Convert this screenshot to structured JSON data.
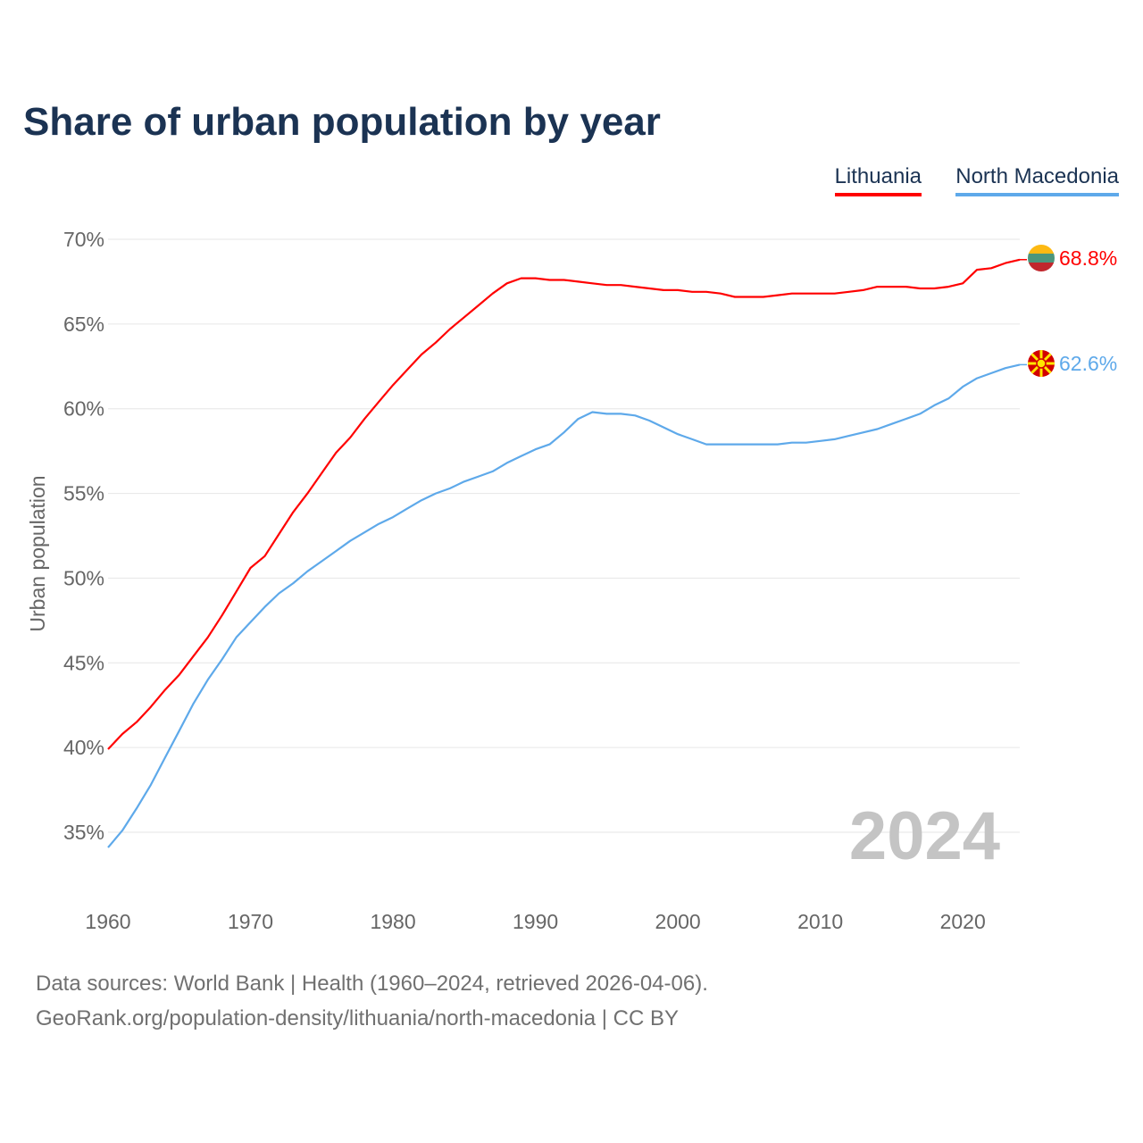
{
  "chart_data": {
    "type": "line",
    "title": "Share of urban population by year",
    "xlabel": "",
    "ylabel": "Urban population",
    "xlim": [
      1960,
      2024
    ],
    "ylim": [
      32.5,
      70
    ],
    "yticks": [
      35,
      40,
      45,
      50,
      55,
      60,
      65,
      70
    ],
    "ytick_labels": [
      "35%",
      "40%",
      "45%",
      "50%",
      "55%",
      "60%",
      "65%",
      "70%"
    ],
    "xticks": [
      1960,
      1970,
      1980,
      1990,
      2000,
      2010,
      2020
    ],
    "xtick_labels": [
      "1960",
      "1970",
      "1980",
      "1990",
      "2000",
      "2010",
      "2020"
    ],
    "grid": true,
    "legend_placement": "top-right",
    "year_watermark": "2024",
    "x": [
      1960,
      1961,
      1962,
      1963,
      1964,
      1965,
      1966,
      1967,
      1968,
      1969,
      1970,
      1971,
      1972,
      1973,
      1974,
      1975,
      1976,
      1977,
      1978,
      1979,
      1980,
      1981,
      1982,
      1983,
      1984,
      1985,
      1986,
      1987,
      1988,
      1989,
      1990,
      1991,
      1992,
      1993,
      1994,
      1995,
      1996,
      1997,
      1998,
      1999,
      2000,
      2001,
      2002,
      2003,
      2004,
      2005,
      2006,
      2007,
      2008,
      2009,
      2010,
      2011,
      2012,
      2013,
      2014,
      2015,
      2016,
      2017,
      2018,
      2019,
      2020,
      2021,
      2022,
      2023,
      2024
    ],
    "series": [
      {
        "name": "Lithuania",
        "color": "#ff0000",
        "end_label": "68.8%",
        "flag": "lithuania-flag",
        "values": [
          39.9,
          40.8,
          41.5,
          42.4,
          43.4,
          44.3,
          45.4,
          46.5,
          47.8,
          49.2,
          50.6,
          51.3,
          52.6,
          53.9,
          55.0,
          56.2,
          57.4,
          58.3,
          59.4,
          60.4,
          61.4,
          62.3,
          63.2,
          63.9,
          64.7,
          65.4,
          66.1,
          66.8,
          67.4,
          67.7,
          67.7,
          67.6,
          67.6,
          67.5,
          67.4,
          67.3,
          67.3,
          67.2,
          67.1,
          67.0,
          67.0,
          66.9,
          66.9,
          66.8,
          66.6,
          66.6,
          66.6,
          66.7,
          66.8,
          66.8,
          66.8,
          66.8,
          66.9,
          67.0,
          67.2,
          67.2,
          67.2,
          67.1,
          67.1,
          67.2,
          67.4,
          68.2,
          68.3,
          68.6,
          68.8
        ]
      },
      {
        "name": "North Macedonia",
        "color": "#5ea9ea",
        "end_label": "62.6%",
        "flag": "north-macedonia-flag",
        "values": [
          34.1,
          35.1,
          36.4,
          37.8,
          39.4,
          41.0,
          42.6,
          44.0,
          45.2,
          46.5,
          47.4,
          48.3,
          49.1,
          49.7,
          50.4,
          51.0,
          51.6,
          52.2,
          52.7,
          53.2,
          53.6,
          54.1,
          54.6,
          55.0,
          55.3,
          55.7,
          56.0,
          56.3,
          56.8,
          57.2,
          57.6,
          57.9,
          58.6,
          59.4,
          59.8,
          59.7,
          59.7,
          59.6,
          59.3,
          58.9,
          58.5,
          58.2,
          57.9,
          57.9,
          57.9,
          57.9,
          57.9,
          57.9,
          58.0,
          58.0,
          58.1,
          58.2,
          58.4,
          58.6,
          58.8,
          59.1,
          59.4,
          59.7,
          60.2,
          60.6,
          61.3,
          61.8,
          62.1,
          62.4,
          62.6
        ]
      }
    ]
  },
  "footer": {
    "line1": "Data sources: World Bank | Health (1960–2024, retrieved 2026-04-06).",
    "line2": "GeoRank.org/population-density/lithuania/north-macedonia | CC BY"
  }
}
